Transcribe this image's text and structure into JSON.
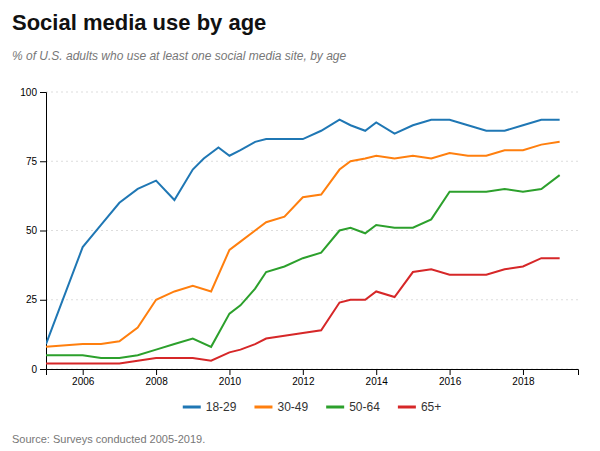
{
  "chart_data": {
    "type": "line",
    "title": "Social media use by age",
    "subtitle": "% of U.S. adults who use at least one social media site, by age",
    "annotations": [
      "Source: Surveys conducted 2005-2019."
    ],
    "xlim": [
      2005.0,
      2019.5
    ],
    "xticks": [
      2006,
      2008,
      2010,
      2012,
      2014,
      2016,
      2018
    ],
    "ylim": [
      0,
      100
    ],
    "yticks": [
      0,
      25,
      50,
      75,
      100
    ],
    "grid": true,
    "legend": "bottom",
    "series": [
      {
        "name": "18-29",
        "x": [
          2005,
          2006,
          2006.5,
          2007,
          2007.5,
          2008,
          2008.5,
          2009,
          2009.3,
          2009.7,
          2010,
          2010.3,
          2010.7,
          2011,
          2011.5,
          2012,
          2012.5,
          2013,
          2013.3,
          2013.7,
          2014,
          2014.5,
          2015,
          2015.5,
          2016,
          2016.5,
          2017,
          2017.5,
          2018,
          2018.5,
          2019
        ],
        "values": [
          9,
          44,
          52,
          60,
          65,
          68,
          61,
          72,
          76,
          80,
          77,
          79,
          82,
          83,
          83,
          83,
          86,
          90,
          88,
          86,
          89,
          85,
          88,
          90,
          90,
          88,
          86,
          86,
          88,
          90,
          90
        ]
      },
      {
        "name": "30-49",
        "x": [
          2005,
          2006,
          2006.5,
          2007,
          2007.5,
          2008,
          2008.5,
          2009,
          2009.5,
          2010,
          2010.3,
          2010.7,
          2011,
          2011.5,
          2012,
          2012.5,
          2013,
          2013.3,
          2013.7,
          2014,
          2014.5,
          2015,
          2015.5,
          2016,
          2016.5,
          2017,
          2017.5,
          2018,
          2018.5,
          2019
        ],
        "values": [
          8,
          9,
          9,
          10,
          15,
          25,
          28,
          30,
          28,
          43,
          46,
          50,
          53,
          55,
          62,
          63,
          72,
          75,
          76,
          77,
          76,
          77,
          76,
          78,
          77,
          77,
          79,
          79,
          81,
          82
        ]
      },
      {
        "name": "50-64",
        "x": [
          2005,
          2006,
          2006.5,
          2007,
          2007.5,
          2008,
          2008.5,
          2009,
          2009.5,
          2010,
          2010.3,
          2010.7,
          2011,
          2011.5,
          2012,
          2012.5,
          2013,
          2013.3,
          2013.7,
          2014,
          2014.5,
          2015,
          2015.5,
          2016,
          2016.5,
          2017,
          2017.5,
          2018,
          2018.5,
          2019
        ],
        "values": [
          5,
          5,
          4,
          4,
          5,
          7,
          9,
          11,
          8,
          20,
          23,
          29,
          35,
          37,
          40,
          42,
          50,
          51,
          49,
          52,
          51,
          51,
          54,
          64,
          64,
          64,
          65,
          64,
          65,
          70
        ]
      },
      {
        "name": "65+",
        "x": [
          2005,
          2006,
          2006.5,
          2007,
          2007.5,
          2008,
          2008.5,
          2009,
          2009.5,
          2010,
          2010.3,
          2010.7,
          2011,
          2011.5,
          2012,
          2012.5,
          2013,
          2013.3,
          2013.7,
          2014,
          2014.5,
          2015,
          2015.5,
          2016,
          2016.5,
          2017,
          2017.5,
          2018,
          2018.5,
          2019
        ],
        "values": [
          2,
          2,
          2,
          2,
          3,
          4,
          4,
          4,
          3,
          6,
          7,
          9,
          11,
          12,
          13,
          14,
          24,
          25,
          25,
          28,
          26,
          35,
          36,
          34,
          34,
          34,
          36,
          37,
          40,
          40
        ]
      }
    ]
  }
}
